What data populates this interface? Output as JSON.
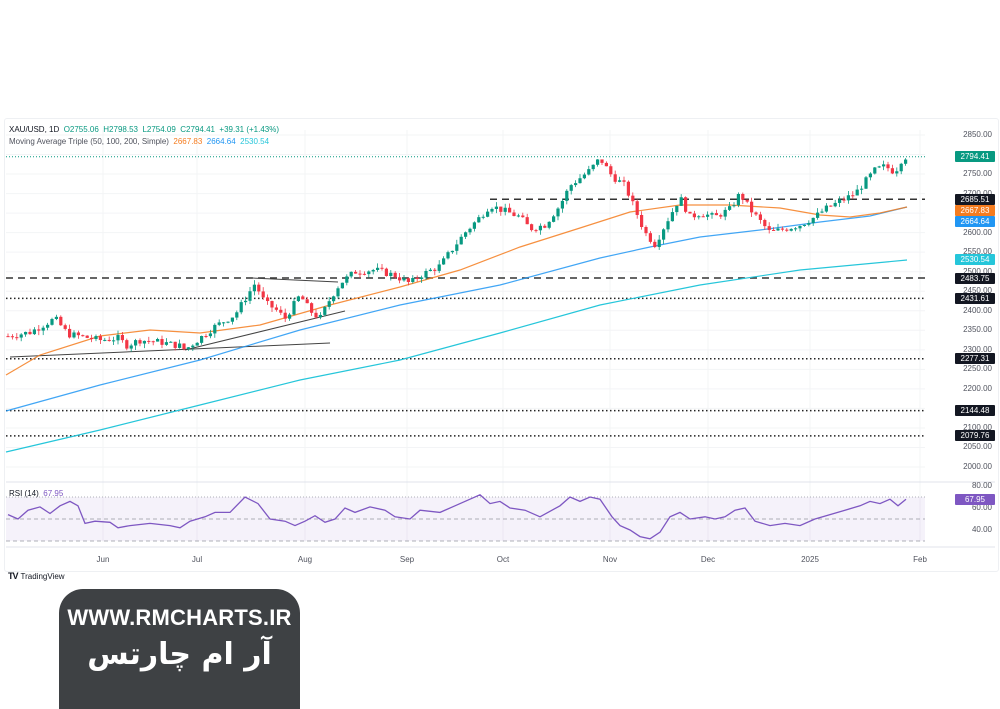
{
  "header": {
    "symbol": "XAU/USD, 1D",
    "open": "O2755.06",
    "high": "H2798.53",
    "low": "L2754.09",
    "close": "C2794.41",
    "change": "+39.31 (+1.43%)",
    "ma_label": "Moving Average Triple (50, 100, 200, Simple)",
    "ma50": "2667.83",
    "ma100": "2664.64",
    "ma200": "2530.54"
  },
  "price_axis": {
    "ticks": [
      "2850.00",
      "2750.00",
      "2600.00",
      "2400.00",
      "2350.00",
      "2250.00",
      "2200.00",
      "2050.00",
      "2000.00"
    ],
    "tags": [
      {
        "label": "2794.41",
        "color": "#089981",
        "price": 2794.41
      },
      {
        "label": "2685.51",
        "color": "#131722",
        "price": 2685.51
      },
      {
        "label": "2667.83",
        "color": "#f57c1f",
        "price": 2667.83
      },
      {
        "label": "2664.64",
        "color": "#2196f3",
        "price": 2664.64
      },
      {
        "label": "2530.54",
        "color": "#26c6da",
        "price": 2530.54
      },
      {
        "label": "2483.75",
        "color": "#131722",
        "price": 2483.75
      },
      {
        "label": "2431.61",
        "color": "#131722",
        "price": 2431.61
      },
      {
        "label": "2277.31",
        "color": "#131722",
        "price": 2277.31
      },
      {
        "label": "2144.48",
        "color": "#131722",
        "price": 2144.48
      },
      {
        "label": "2079.76",
        "color": "#131722",
        "price": 2079.76
      }
    ]
  },
  "rsi": {
    "label": "RSI (14)",
    "value": "67.95",
    "ticks": [
      "80.00",
      "60.00",
      "40.00"
    ],
    "color": "#7e57c2"
  },
  "time_axis": {
    "labels": [
      "Jun",
      "Jul",
      "Aug",
      "Sep",
      "Oct",
      "Nov",
      "Dec",
      "2025",
      "Feb"
    ]
  },
  "footer": {
    "tradingview": "TradingView"
  },
  "brand": {
    "url": "WWW.RMCHARTS.IR",
    "name_fa": "آر ام چارتس"
  },
  "chart_data": {
    "type": "candlestick",
    "title": "XAU/USD, 1D",
    "symbol": "XAU/USD",
    "timeframe": "1D",
    "ohlc_last": {
      "open": 2755.06,
      "high": 2798.53,
      "low": 2754.09,
      "close": 2794.41,
      "change": 39.31,
      "change_pct": 1.43
    },
    "x_labels": [
      "Jun",
      "Jul",
      "Aug",
      "Sep",
      "Oct",
      "Nov",
      "Dec",
      "2025",
      "Feb"
    ],
    "ylim": [
      1980,
      2870
    ],
    "price_ticks": [
      2000,
      2050,
      2100,
      2150,
      2200,
      2250,
      2300,
      2350,
      2400,
      2450,
      2500,
      2550,
      2600,
      2650,
      2700,
      2750,
      2800,
      2850
    ],
    "close_series_approx": [
      {
        "month": "May-mid",
        "close": 2340
      },
      {
        "month": "May-end",
        "close": 2350
      },
      {
        "month": "Jun-start",
        "close": 2330
      },
      {
        "month": "Jun-mid",
        "close": 2320
      },
      {
        "month": "Jun-end",
        "close": 2325
      },
      {
        "month": "Jul-start",
        "close": 2330
      },
      {
        "month": "Jul-mid",
        "close": 2465
      },
      {
        "month": "Jul-end",
        "close": 2385
      },
      {
        "month": "Aug-start",
        "close": 2440
      },
      {
        "month": "Aug-mid",
        "close": 2500
      },
      {
        "month": "Aug-end",
        "close": 2505
      },
      {
        "month": "Sep-start",
        "close": 2495
      },
      {
        "month": "Sep-mid",
        "close": 2580
      },
      {
        "month": "Sep-end",
        "close": 2660
      },
      {
        "month": "Oct-start",
        "close": 2655
      },
      {
        "month": "Oct-mid",
        "close": 2650
      },
      {
        "month": "Oct-end",
        "close": 2780
      },
      {
        "month": "Nov-start",
        "close": 2740
      },
      {
        "month": "Nov-mid",
        "close": 2565
      },
      {
        "month": "Nov-end",
        "close": 2650
      },
      {
        "month": "Dec-start",
        "close": 2640
      },
      {
        "month": "Dec-mid",
        "close": 2650
      },
      {
        "month": "Dec-end",
        "close": 2610
      },
      {
        "month": "Jan-start",
        "close": 2640
      },
      {
        "month": "Jan-mid",
        "close": 2690
      },
      {
        "month": "Jan-end",
        "close": 2794.41
      }
    ],
    "moving_averages": [
      {
        "name": "SMA 50",
        "color": "#f57c1f",
        "last": 2667.83
      },
      {
        "name": "SMA 100",
        "color": "#2196f3",
        "last": 2664.64
      },
      {
        "name": "SMA 200",
        "color": "#26c6da",
        "last": 2530.54
      }
    ],
    "horizontal_levels": [
      {
        "price": 2794.41,
        "style": "dotted",
        "color": "#089981"
      },
      {
        "price": 2685.51,
        "style": "dashed"
      },
      {
        "price": 2483.75,
        "style": "dashed"
      },
      {
        "price": 2431.61,
        "style": "dotted"
      },
      {
        "price": 2277.31,
        "style": "dotted"
      },
      {
        "price": 2144.48,
        "style": "dotted"
      },
      {
        "price": 2079.76,
        "style": "dotted"
      }
    ],
    "rsi": {
      "period": 14,
      "last": 67.95,
      "levels": [
        70,
        50,
        30
      ],
      "ylim": [
        20,
        85
      ],
      "ticks": [
        40,
        60,
        80
      ]
    },
    "grid": true
  }
}
